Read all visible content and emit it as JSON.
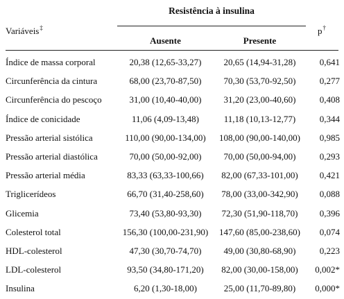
{
  "header": {
    "group_title": "Resistência à insulina",
    "variable_label": "Variáveis",
    "variable_mark": "‡",
    "p_label": "p",
    "p_mark": "†",
    "col_absent": "Ausente",
    "col_present": "Presente"
  },
  "rows": [
    {
      "variable": "Índice de massa corporal",
      "absent": "20,38 (12,65-33,27)",
      "present": "20,65 (14,94-31,28)",
      "p": "0,641"
    },
    {
      "variable": "Circunferência da cintura",
      "absent": "68,00 (23,70-87,50)",
      "present": "70,30 (53,70-92,50)",
      "p": "0,277"
    },
    {
      "variable": "Circunferência do pescoço",
      "absent": "31,00 (10,40-40,00)",
      "present": "31,20 (23,00-40,60)",
      "p": "0,408"
    },
    {
      "variable": "Índice de conicidade",
      "absent": "11,06 (4,09-13,48)",
      "present": "11,18 (10,13-12,77)",
      "p": "0,344"
    },
    {
      "variable": "Pressão arterial sistólica",
      "absent": "110,00 (90,00-134,00)",
      "present": "108,00 (90,00-140,00)",
      "p": "0,985"
    },
    {
      "variable": "Pressão arterial diastólica",
      "absent": "70,00 (50,00-92,00)",
      "present": "70,00 (50,00-94,00)",
      "p": "0,293"
    },
    {
      "variable": "Pressão arterial média",
      "absent": "83,33 (63,33-100,66)",
      "present": "82,00 (67,33-101,00)",
      "p": "0,421"
    },
    {
      "variable": "Triglicerídeos",
      "absent": "66,70 (31,40-258,60)",
      "present": "78,00 (33,00-342,90)",
      "p": "0,088"
    },
    {
      "variable": "Glicemia",
      "absent": "73,40 (53,80-93,30)",
      "present": "72,30 (51,90-118,70)",
      "p": "0,396"
    },
    {
      "variable": "Colesterol total",
      "absent": "156,30 (100,00-231,90)",
      "present": "147,60 (85,00-238,60)",
      "p": "0,074"
    },
    {
      "variable": "HDL-colesterol",
      "absent": "47,30 (30,70-74,70)",
      "present": "49,00 (30,80-68,90)",
      "p": "0,223"
    },
    {
      "variable": "LDL-colesterol",
      "absent": "93,50 (34,80-171,20)",
      "present": "82,00 (30,00-158,00)",
      "p": "0,002*"
    },
    {
      "variable": "Insulina",
      "absent": "6,20 (1,30-18,00)",
      "present": "25,00 (11,70-89,80)",
      "p": "0,000*"
    }
  ]
}
